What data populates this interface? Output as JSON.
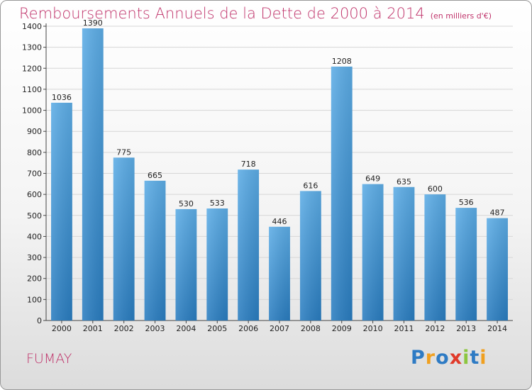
{
  "header": {
    "title": "Remboursements Annuels de la Dette de 2000 à 2014",
    "unit": "(en milliers d'€)"
  },
  "footer": {
    "commune": "FUMAY",
    "brand": "Proxiti",
    "brand_letters": [
      {
        "ch": "P",
        "color": "#2e7bc4"
      },
      {
        "ch": "r",
        "color": "#f0a020"
      },
      {
        "ch": "o",
        "color": "#2e7bc4"
      },
      {
        "ch": "x",
        "color": "#e03a2a"
      },
      {
        "ch": "i",
        "color": "#8cc63f"
      },
      {
        "ch": "t",
        "color": "#2e7bc4"
      },
      {
        "ch": "i",
        "color": "#f0a020"
      }
    ]
  },
  "chart_data": {
    "type": "bar",
    "title": "Remboursements Annuels de la Dette de 2000 à 2014",
    "categories": [
      "2000",
      "2001",
      "2002",
      "2003",
      "2004",
      "2005",
      "2006",
      "2007",
      "2008",
      "2009",
      "2010",
      "2011",
      "2012",
      "2013",
      "2014"
    ],
    "values": [
      1036,
      1390,
      775,
      665,
      530,
      533,
      718,
      446,
      616,
      1208,
      649,
      635,
      600,
      536,
      487
    ],
    "ylim": [
      0,
      1400
    ],
    "yticks": [
      0,
      100,
      200,
      300,
      400,
      500,
      600,
      700,
      800,
      900,
      1000,
      1100,
      1200,
      1300,
      1400
    ],
    "grid": true,
    "bar_color_top": "#5dade6",
    "bar_color_bottom": "#2a7dc0"
  }
}
